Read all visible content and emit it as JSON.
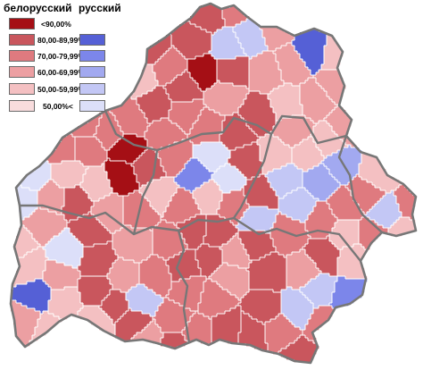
{
  "legend": {
    "belarusian_title": "белорусский",
    "russian_title": "русский",
    "classes": [
      {
        "label": "<90,00%",
        "belarusian_color": "#a50f15",
        "russian_color": null
      },
      {
        "label": "80,00-89,99%",
        "belarusian_color": "#c9565d",
        "russian_color": "#5560d6"
      },
      {
        "label": "70,00-79,99%",
        "belarusian_color": "#df7a7f",
        "russian_color": "#7c86ea"
      },
      {
        "label": "60,00-69,99%",
        "belarusian_color": "#ec9fa2",
        "russian_color": "#a2a9f0"
      },
      {
        "label": "50,00-59,99%",
        "belarusian_color": "#f4c0c2",
        "russian_color": "#c3c7f5"
      },
      {
        "label": "50,00%<",
        "belarusian_color": "#f8dcdd",
        "russian_color": "#dcdff9"
      }
    ]
  },
  "colors": {
    "district_border": "#ffffff",
    "region_border": "#777777",
    "background": "#ffffff"
  }
}
